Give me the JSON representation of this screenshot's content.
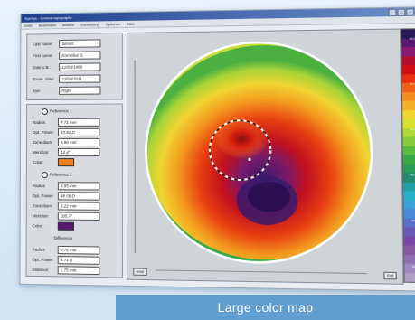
{
  "window": {
    "title": "EyeSys - Corneal topography",
    "buttons": [
      "_",
      "□",
      "×"
    ]
  },
  "menu": [
    "Datei",
    "Bearbeiten",
    "Ansicht",
    "Darstellung",
    "Optionen",
    "Hilfe"
  ],
  "patient": {
    "rows": [
      {
        "label": "Last name:",
        "value": "Simon"
      },
      {
        "label": "First name:",
        "value": "Kornelius S."
      },
      {
        "label": "Date o.B.:",
        "value": "12/03/1958"
      },
      {
        "label": "Exam. date:",
        "value": "23/04/2011"
      },
      {
        "label": "Eye:",
        "value": "Right"
      }
    ]
  },
  "spheres": [
    {
      "title": "Reference 1",
      "rows": [
        {
          "label": "Radius",
          "value": "7.71 mm"
        },
        {
          "label": "Opt. Power:",
          "value": "43.82 D"
        },
        {
          "label": "Zone diam:",
          "value": "5.90 mm"
        },
        {
          "label": "Meridian:",
          "value": "13.4°"
        },
        {
          "label": "Color:",
          "value": ""
        }
      ],
      "color": "#f08020"
    },
    {
      "title": "Reference 2",
      "rows": [
        {
          "label": "Radius",
          "value": "6.95 mm"
        },
        {
          "label": "Opt. Power:",
          "value": "48.56 D"
        },
        {
          "label": "Zone diam:",
          "value": "3.22 mm"
        },
        {
          "label": "Meridian:",
          "value": "205.7°"
        },
        {
          "label": "Color:",
          "value": ""
        }
      ],
      "color": "#5a1a70"
    },
    {
      "title": "Difference",
      "rows": [
        {
          "label": "Radius",
          "value": "0.76 mm"
        },
        {
          "label": "Opt. Power:",
          "value": "4.74 D"
        },
        {
          "label": "Distance:",
          "value": "1.75 mm"
        }
      ]
    }
  ],
  "map": {
    "button_left": "Axial",
    "button_right": "Exit"
  },
  "scale": {
    "colors": [
      "#2a1a5a",
      "#5a1a70",
      "#8a1a70",
      "#b0102a",
      "#d01010",
      "#e83010",
      "#f06018",
      "#f38a20",
      "#f4b028",
      "#f0d430",
      "#d8e030",
      "#b0d838",
      "#88cc3c",
      "#58bc40",
      "#36a844",
      "#2a9c58",
      "#248c70",
      "#20a0a8",
      "#28b0c8",
      "#3aa0d8",
      "#4a88d8",
      "#5a70c8",
      "#6a5ab8",
      "#7a48a8",
      "#885aa0",
      "#9070b0",
      "#a088c0",
      "#b0a0c8"
    ],
    "labels": [
      "33.00",
      "37.00",
      "41.00",
      "45.00",
      "49.00",
      "53.00"
    ]
  },
  "caption": "Large color map"
}
